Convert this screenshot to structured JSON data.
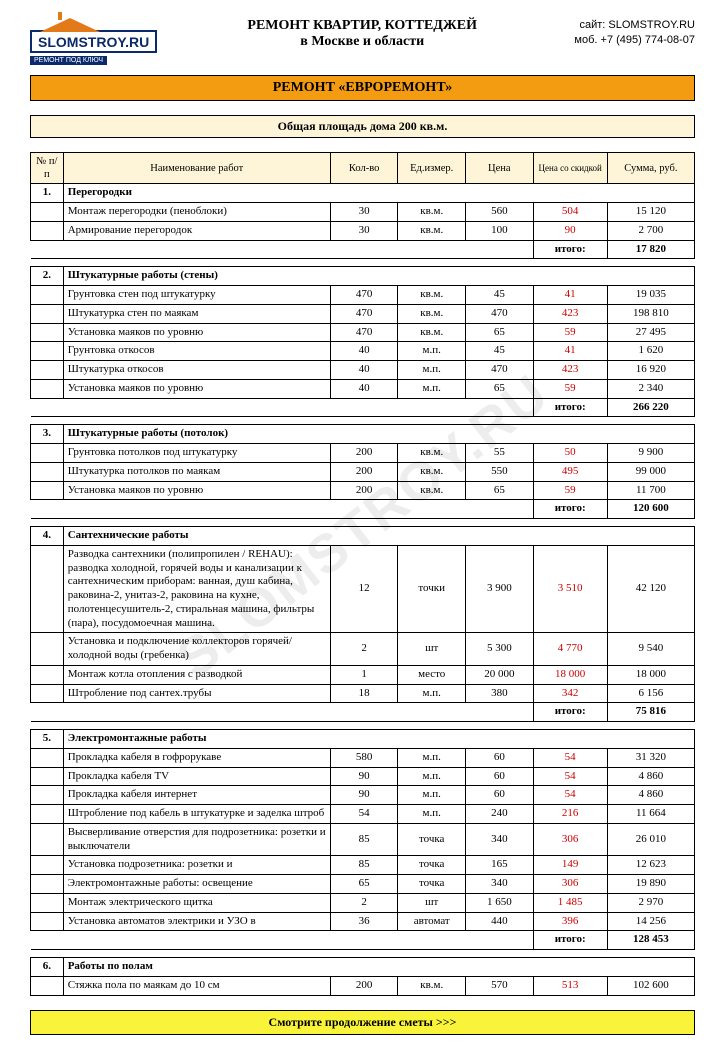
{
  "header": {
    "logo_text": "SLOMSTROY.RU",
    "logo_sub": "РЕМОНТ ПОД КЛЮЧ",
    "line1": "РЕМОНТ КВАРТИР, КОТТЕДЖЕЙ",
    "line2": "в Москве и области",
    "site_label": "сайт:",
    "site": "SLOMSTROY.RU",
    "phone_label": "моб.",
    "phone": "+7 (495) 774-08-07"
  },
  "title": "РЕМОНТ «ЕВРОРЕМОНТ»",
  "subtitle": "Общая площадь дома 200 кв.м.",
  "columns": {
    "num": "№ п/п",
    "name": "Наименование работ",
    "qty": "Кол-во",
    "unit": "Ед.измер.",
    "price": "Цена",
    "discount": "Цена со скидкой",
    "sum": "Сумма, руб."
  },
  "subtotal_label": "итого:",
  "footer": "Смотрите продолжение сметы >>>",
  "watermark": "SLOMSTROY.RU",
  "sections": [
    {
      "num": "1.",
      "title": "Перегородки",
      "rows": [
        {
          "name": "Монтаж перегородки (пеноблоки)",
          "qty": "30",
          "unit": "кв.м.",
          "price": "560",
          "disc": "504",
          "sum": "15 120"
        },
        {
          "name": "Армирование перегородок",
          "qty": "30",
          "unit": "кв.м.",
          "price": "100",
          "disc": "90",
          "sum": "2 700"
        }
      ],
      "subtotal": "17 820"
    },
    {
      "num": "2.",
      "title": "Штукатурные работы (стены)",
      "rows": [
        {
          "name": "Грунтовка стен под штукатурку",
          "qty": "470",
          "unit": "кв.м.",
          "price": "45",
          "disc": "41",
          "sum": "19 035"
        },
        {
          "name": "Штукатурка стен по маякам",
          "qty": "470",
          "unit": "кв.м.",
          "price": "470",
          "disc": "423",
          "sum": "198 810"
        },
        {
          "name": "Установка маяков по уровню",
          "qty": "470",
          "unit": "кв.м.",
          "price": "65",
          "disc": "59",
          "sum": "27 495"
        },
        {
          "name": "Грунтовка откосов",
          "qty": "40",
          "unit": "м.п.",
          "price": "45",
          "disc": "41",
          "sum": "1 620"
        },
        {
          "name": "Штукатурка откосов",
          "qty": "40",
          "unit": "м.п.",
          "price": "470",
          "disc": "423",
          "sum": "16 920"
        },
        {
          "name": "Установка маяков по уровню",
          "qty": "40",
          "unit": "м.п.",
          "price": "65",
          "disc": "59",
          "sum": "2 340"
        }
      ],
      "subtotal": "266 220"
    },
    {
      "num": "3.",
      "title": "Штукатурные работы (потолок)",
      "rows": [
        {
          "name": "Грунтовка потолков под штукатурку",
          "qty": "200",
          "unit": "кв.м.",
          "price": "55",
          "disc": "50",
          "sum": "9 900"
        },
        {
          "name": "Штукатурка потолков по маякам",
          "qty": "200",
          "unit": "кв.м.",
          "price": "550",
          "disc": "495",
          "sum": "99 000"
        },
        {
          "name": "Установка маяков по уровню",
          "qty": "200",
          "unit": "кв.м.",
          "price": "65",
          "disc": "59",
          "sum": "11 700"
        }
      ],
      "subtotal": "120 600"
    },
    {
      "num": "4.",
      "title": "Сантехнические работы",
      "rows": [
        {
          "name": "Разводка сантехники (полипропилен / REHAU): разводка холодной, горячей воды и канализации к сантехническим приборам: ванная, душ кабина, раковина-2, унитаз-2, раковина на кухне, полотенцесушитель-2, стиральная машина, фильтры (пара), посудомоечная машина.",
          "qty": "12",
          "unit": "точки",
          "price": "3 900",
          "disc": "3 510",
          "sum": "42 120"
        },
        {
          "name": "Установка и подключение коллекторов горячей/холодной воды (гребенка)",
          "qty": "2",
          "unit": "шт",
          "price": "5 300",
          "disc": "4 770",
          "sum": "9 540"
        },
        {
          "name": "Монтаж котла отопления с  разводкой",
          "qty": "1",
          "unit": "место",
          "price": "20 000",
          "disc": "18 000",
          "sum": "18 000"
        },
        {
          "name": "Штробление под сантех.трубы",
          "qty": "18",
          "unit": "м.п.",
          "price": "380",
          "disc": "342",
          "sum": "6 156"
        }
      ],
      "subtotal": "75 816"
    },
    {
      "num": "5.",
      "title": "Электромонтажные работы",
      "rows": [
        {
          "name": "Прокладка кабеля в гофрорукаве",
          "qty": "580",
          "unit": "м.п.",
          "price": "60",
          "disc": "54",
          "sum": "31 320"
        },
        {
          "name": "Прокладка кабеля TV",
          "qty": "90",
          "unit": "м.п.",
          "price": "60",
          "disc": "54",
          "sum": "4 860"
        },
        {
          "name": "Прокладка кабеля интернет",
          "qty": "90",
          "unit": "м.п.",
          "price": "60",
          "disc": "54",
          "sum": "4 860"
        },
        {
          "name": "Штробление под кабель в штукатурке и заделка штроб",
          "qty": "54",
          "unit": "м.п.",
          "price": "240",
          "disc": "216",
          "sum": "11 664"
        },
        {
          "name": "Высверливание отверстия для подрозетника: розетки и выключатели",
          "qty": "85",
          "unit": "точка",
          "price": "340",
          "disc": "306",
          "sum": "26 010"
        },
        {
          "name": "Установка подрозетника: розетки и",
          "qty": "85",
          "unit": "точка",
          "price": "165",
          "disc": "149",
          "sum": "12 623"
        },
        {
          "name": "Электромонтажные работы: освещение",
          "qty": "65",
          "unit": "точка",
          "price": "340",
          "disc": "306",
          "sum": "19 890"
        },
        {
          "name": "Монтаж электрического щитка",
          "qty": "2",
          "unit": "шт",
          "price": "1 650",
          "disc": "1 485",
          "sum": "2 970"
        },
        {
          "name": "Установка автоматов электрики и УЗО в",
          "qty": "36",
          "unit": "автомат",
          "price": "440",
          "disc": "396",
          "sum": "14 256"
        }
      ],
      "subtotal": "128 453"
    },
    {
      "num": "6.",
      "title": "Работы по полам",
      "rows": [
        {
          "name": "Стяжка пола по маякам до 10 см",
          "qty": "200",
          "unit": "кв.м.",
          "price": "570",
          "disc": "513",
          "sum": "102 600"
        }
      ]
    }
  ]
}
